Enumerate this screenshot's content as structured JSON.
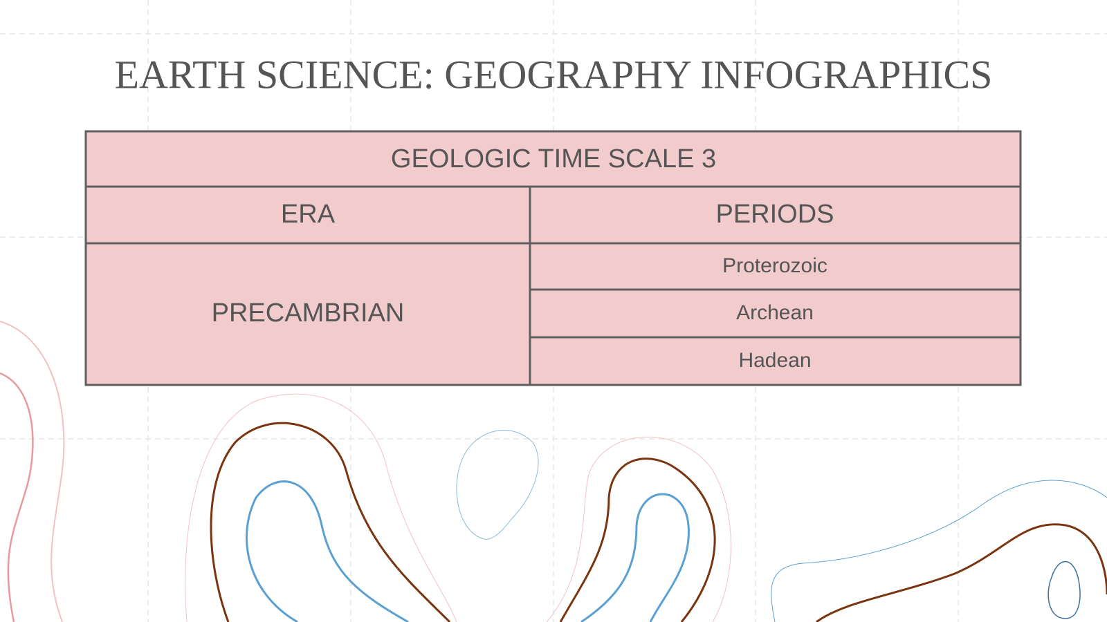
{
  "title": "EARTH SCIENCE: GEOGRAPHY INFOGRAPHICS",
  "table": {
    "caption": "GEOLOGIC TIME SCALE 3",
    "header": [
      "ERA",
      "PERIODS"
    ],
    "era": "PRECAMBRIAN",
    "periods": [
      "Proterozoic",
      "Archean",
      "Hadean"
    ]
  }
}
